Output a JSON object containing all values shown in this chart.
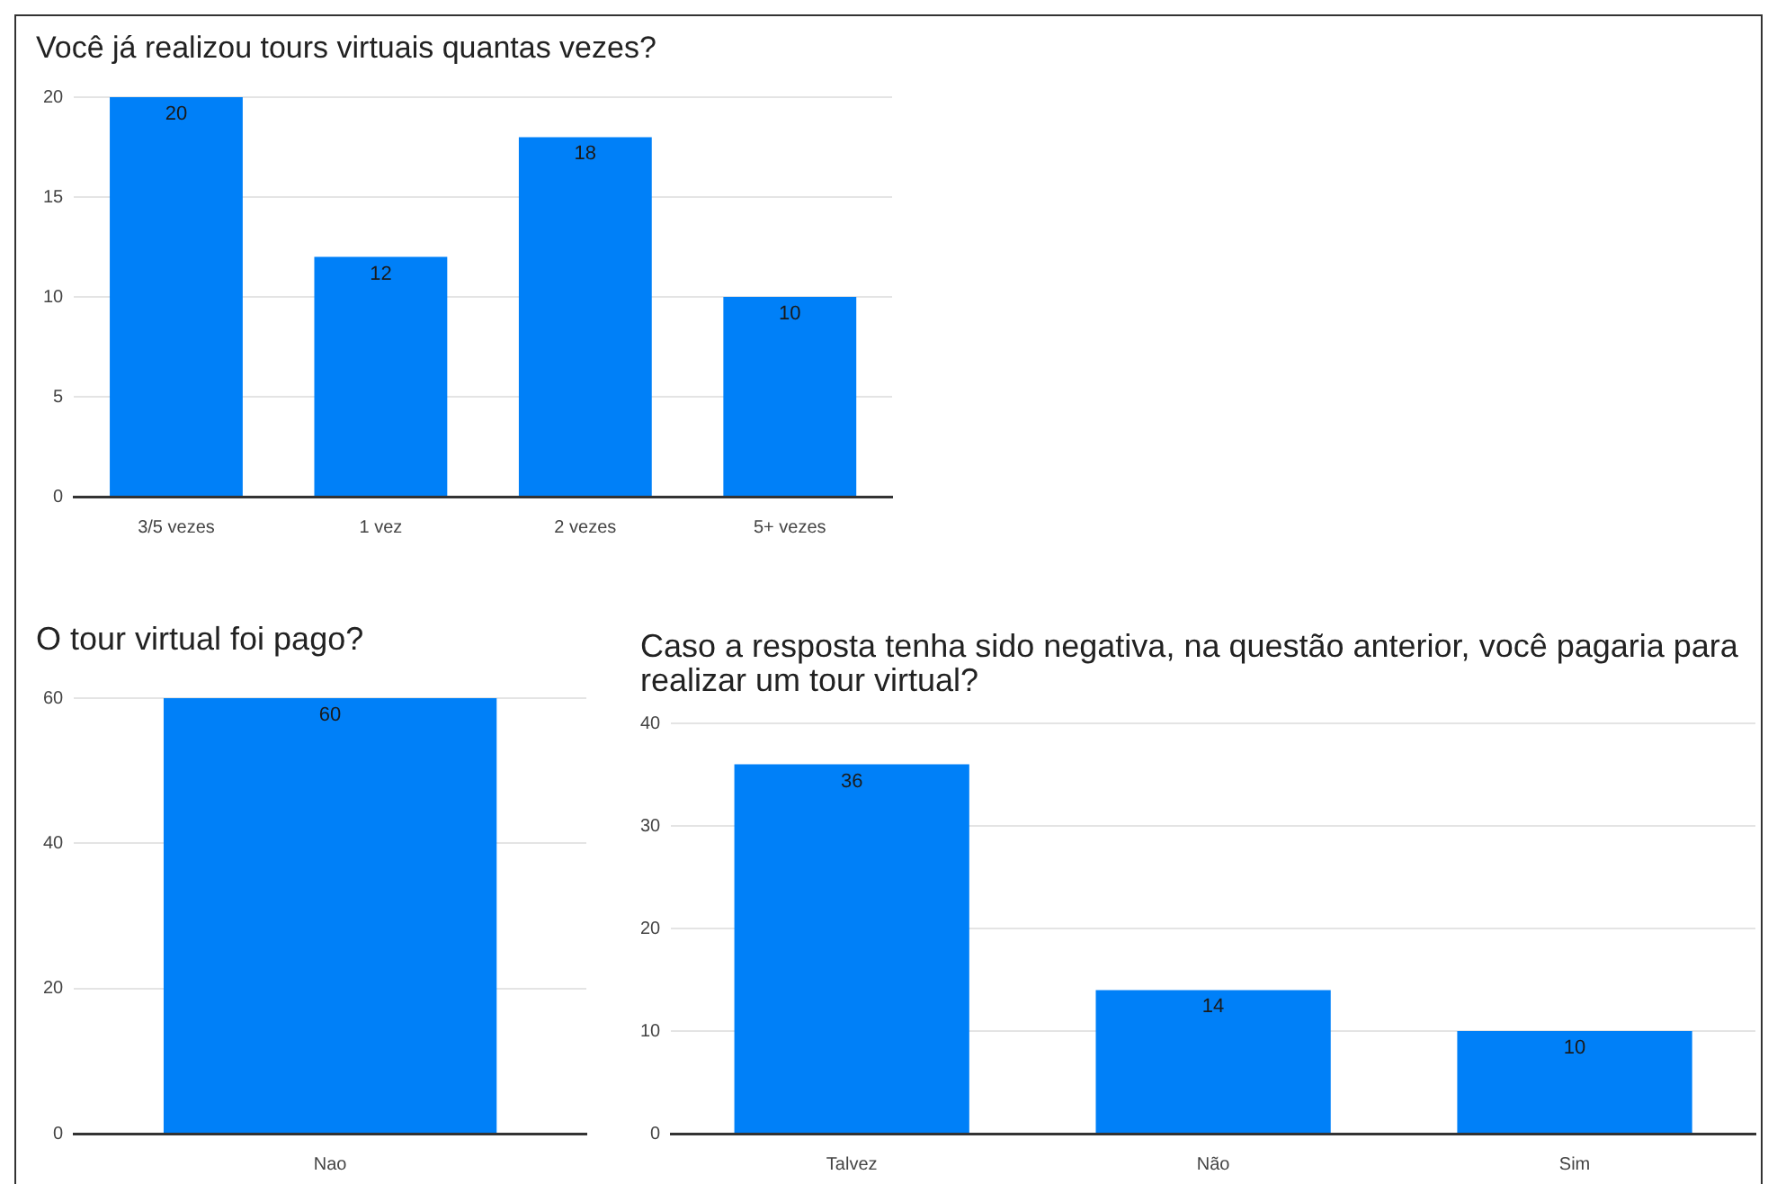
{
  "chart_data": [
    {
      "type": "bar",
      "title": "Você já realizou tours virtuais quantas vezes?",
      "categories": [
        "3/5 vezes",
        "1 vez",
        "2 vezes",
        "5+ vezes"
      ],
      "values": [
        20,
        12,
        18,
        10
      ],
      "color": "#0080f8",
      "ylim": [
        0,
        20
      ],
      "yticks": [
        0,
        5,
        10,
        15,
        20
      ],
      "grid": "y",
      "data_labels": true,
      "legend": false
    },
    {
      "type": "bar",
      "title": "O tour virtual foi pago?",
      "categories": [
        "Nao"
      ],
      "values": [
        60
      ],
      "color": "#0080f8",
      "ylim": [
        0,
        60
      ],
      "yticks": [
        0,
        20,
        40,
        60
      ],
      "grid": "y",
      "data_labels": true,
      "legend": false
    },
    {
      "type": "bar",
      "title": "Caso a resposta tenha sido negativa, na questão anterior, você pagaria para realizar um tour virtual?",
      "categories": [
        "Talvez",
        "Não",
        "Sim"
      ],
      "values": [
        36,
        14,
        10
      ],
      "color": "#0080f8",
      "ylim": [
        0,
        40
      ],
      "yticks": [
        0,
        10,
        20,
        30,
        40
      ],
      "grid": "y",
      "data_labels": true,
      "legend": false
    }
  ]
}
